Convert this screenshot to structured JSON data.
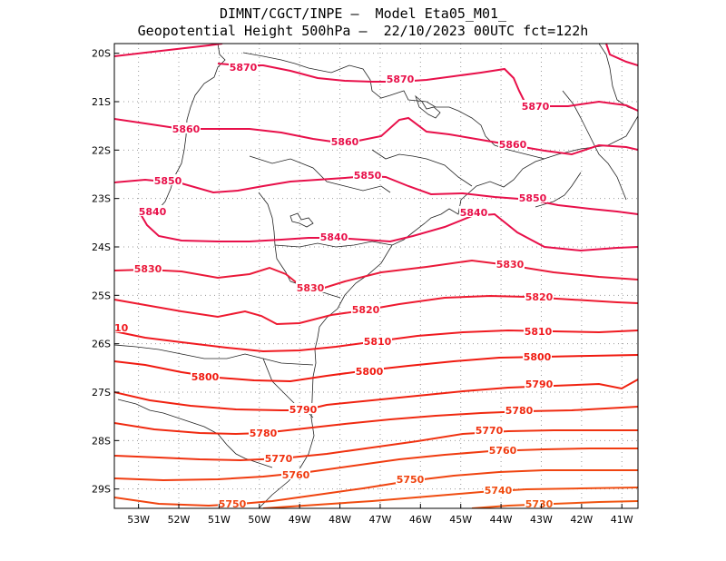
{
  "title": {
    "line1": "DIMNT/CGCT/INPE –  Model Eta05_M01_",
    "line2": "Geopotential Height 500hPa –  22/10/2023 00UTC fct=122h"
  },
  "map_data": {
    "lon_range": [
      -53.6,
      -40.6
    ],
    "lat_range": [
      -29.4,
      -19.8
    ],
    "lon_ticks": [
      "53W",
      "52W",
      "51W",
      "50W",
      "49W",
      "48W",
      "47W",
      "46W",
      "45W",
      "44W",
      "43W",
      "42W",
      "41W"
    ],
    "lat_ticks": [
      "20S",
      "21S",
      "22S",
      "23S",
      "24S",
      "25S",
      "26S",
      "27S",
      "28S",
      "29S"
    ],
    "grid": "dotted",
    "contour_levels": [
      {
        "value": "5870",
        "color": "#e8104a"
      },
      {
        "value": "5860",
        "color": "#e8104a"
      },
      {
        "value": "5850",
        "color": "#e8104a"
      },
      {
        "value": "5840",
        "color": "#e8104a"
      },
      {
        "value": "5830",
        "color": "#ea1a3a"
      },
      {
        "value": "5820",
        "color": "#ee1a30"
      },
      {
        "value": "5810",
        "color": "#f01a20"
      },
      {
        "value": "5800",
        "color": "#f01a10"
      },
      {
        "value": "5790",
        "color": "#f02210"
      },
      {
        "value": "5780",
        "color": "#f02a10"
      },
      {
        "value": "5770",
        "color": "#f03210"
      },
      {
        "value": "5760",
        "color": "#f03c10"
      },
      {
        "value": "5750",
        "color": "#f04410"
      },
      {
        "value": "5740",
        "color": "#f04c10"
      },
      {
        "value": "5730",
        "color": "#f05410"
      }
    ]
  }
}
